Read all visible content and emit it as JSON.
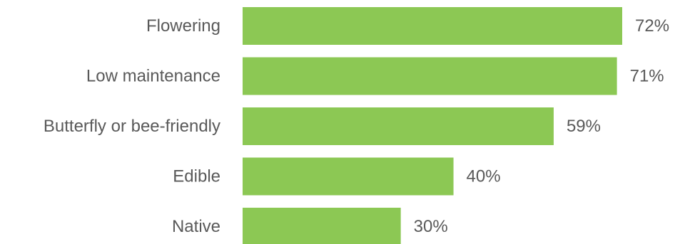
{
  "chart_data": {
    "type": "bar",
    "orientation": "horizontal",
    "categories": [
      "Flowering",
      "Low maintenance",
      "Butterfly or bee-friendly",
      "Edible",
      "Native"
    ],
    "values": [
      72,
      71,
      59,
      40,
      30
    ],
    "value_labels": [
      "72%",
      "71%",
      "59%",
      "40%",
      "30%"
    ],
    "unit": "%",
    "xlim": [
      0,
      72
    ],
    "grid": false,
    "bar_color": "#8cc854",
    "text_color": "#595959"
  }
}
